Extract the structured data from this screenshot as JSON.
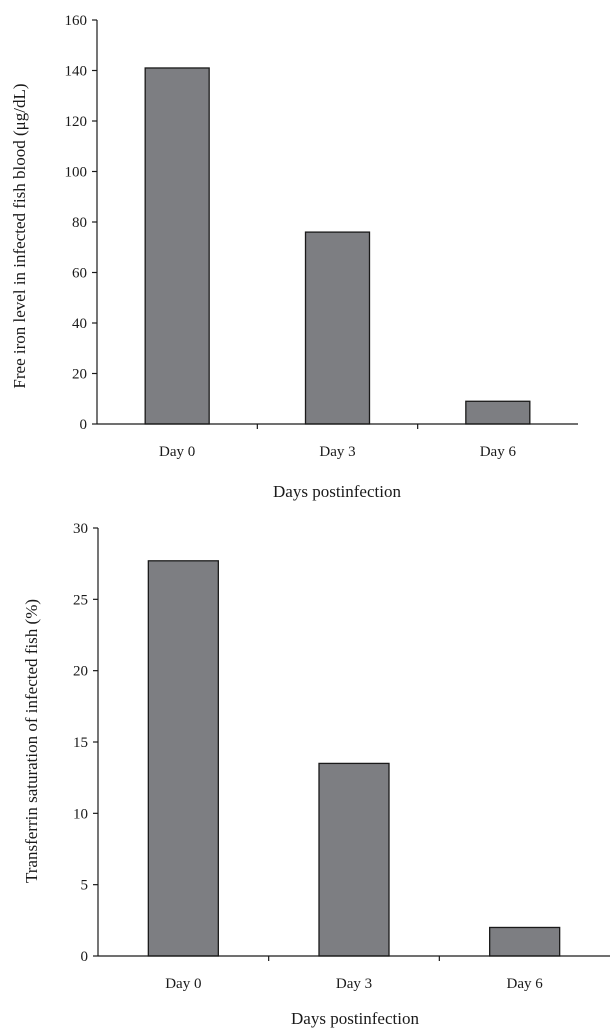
{
  "colors": {
    "bar_fill": "#7d7e82",
    "axis": "#1a1a1a",
    "background": "#ffffff"
  },
  "chart_data": [
    {
      "type": "bar",
      "categories": [
        "Day 0",
        "Day 3",
        "Day 6"
      ],
      "values": [
        141,
        76,
        9
      ],
      "xlabel": "Days postinfection",
      "ylabel": "Free iron level in infected fish blood (μg/dL)",
      "ylim": [
        0,
        160
      ],
      "yticks": [
        "0",
        "20",
        "40",
        "60",
        "80",
        "100",
        "120",
        "140",
        "160"
      ],
      "grid": false,
      "legend": "none"
    },
    {
      "type": "bar",
      "categories": [
        "Day 0",
        "Day 3",
        "Day 6"
      ],
      "values": [
        27.7,
        13.5,
        2
      ],
      "xlabel": "Days postinfection",
      "ylabel": "Transferrin saturation of  infected fish (%)",
      "ylim": [
        0,
        30
      ],
      "yticks": [
        "0",
        "5",
        "10",
        "15",
        "20",
        "25",
        "30"
      ],
      "grid": false,
      "legend": "none"
    }
  ]
}
